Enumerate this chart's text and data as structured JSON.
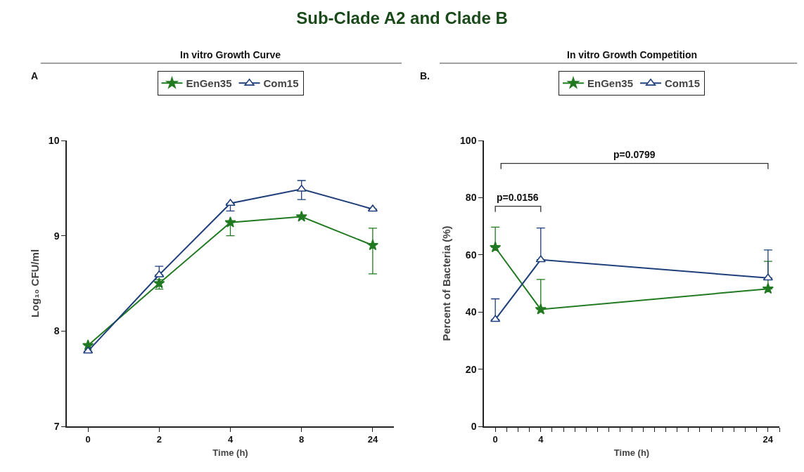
{
  "chart_data": [
    {
      "type": "line",
      "title": "Sub-Clade A2 and Clade B",
      "subtitle": "In vitro Growth Curve",
      "xlabel": "Time (h)",
      "ylabel": "Log₁₀ CFU/ml",
      "annotations": [
        "A"
      ],
      "categories": [
        "0",
        "2",
        "4",
        "8",
        "24"
      ],
      "series": [
        {
          "name": "EnGen35",
          "color": "#217a21",
          "marker": "star",
          "values": [
            7.85,
            8.5,
            9.14,
            9.2,
            8.9
          ],
          "errors": [
            null,
            [
              8.44,
              8.54
            ],
            [
              9.0,
              9.14
            ],
            null,
            [
              8.6,
              9.08
            ]
          ]
        },
        {
          "name": "Com15",
          "color": "#1f3f7a",
          "marker": "triangle",
          "values": [
            7.79,
            8.59,
            9.34,
            9.49,
            9.28
          ],
          "errors": [
            null,
            [
              8.59,
              8.68
            ],
            [
              9.26,
              9.34
            ],
            [
              9.38,
              9.58
            ],
            null
          ]
        }
      ],
      "ylim": [
        7,
        10
      ],
      "yticks": [
        7,
        8,
        9,
        10
      ],
      "grid": false,
      "legend": "top"
    },
    {
      "type": "line",
      "title": "In vitro Growth Competition",
      "xlabel": "Time (h)",
      "ylabel": "Percent of Bacteria (%)",
      "annotations": [
        "B.",
        "p=0.0156",
        "p=0.0799"
      ],
      "x": [
        0,
        4,
        24
      ],
      "series": [
        {
          "name": "EnGen35",
          "color": "#217a21",
          "marker": "star",
          "values": [
            62.6,
            40.9,
            48.1
          ],
          "errors": [
            [
              62.6,
              69.7
            ],
            [
              40.9,
              51.4
            ],
            [
              48.1,
              57.7
            ]
          ]
        },
        {
          "name": "Com15",
          "color": "#1f3f7a",
          "marker": "triangle",
          "values": [
            37.4,
            58.3,
            51.9
          ],
          "errors": [
            [
              37.4,
              44.6
            ],
            [
              58.3,
              69.4
            ],
            [
              51.9,
              61.7
            ]
          ]
        }
      ],
      "xlim": [
        -1,
        25
      ],
      "xticks": [
        0,
        {
          "value": 1,
          "label": null
        },
        {
          "value": 2,
          "label": null
        },
        {
          "value": 3,
          "label": null
        },
        4,
        {
          "value": 5,
          "label": null
        },
        {
          "value": 6,
          "label": null
        },
        {
          "value": 7,
          "label": null
        },
        {
          "value": 8,
          "label": null
        },
        {
          "value": 9,
          "label": null
        },
        {
          "value": 10,
          "label": null
        },
        {
          "value": 11,
          "label": null
        },
        {
          "value": 12,
          "label": null
        },
        {
          "value": 13,
          "label": null
        },
        {
          "value": 14,
          "label": null
        },
        {
          "value": 15,
          "label": null
        },
        {
          "value": 16,
          "label": null
        },
        {
          "value": 17,
          "label": null
        },
        {
          "value": 18,
          "label": null
        },
        {
          "value": 19,
          "label": null
        },
        {
          "value": 20,
          "label": null
        },
        {
          "value": 21,
          "label": null
        },
        {
          "value": 22,
          "label": null
        },
        {
          "value": 23,
          "label": null
        },
        24,
        {
          "value": 25,
          "label": null
        }
      ],
      "ylim": [
        0,
        100
      ],
      "yticks": [
        0,
        20,
        40,
        60,
        80,
        100
      ],
      "grid": false,
      "legend": "top"
    }
  ]
}
